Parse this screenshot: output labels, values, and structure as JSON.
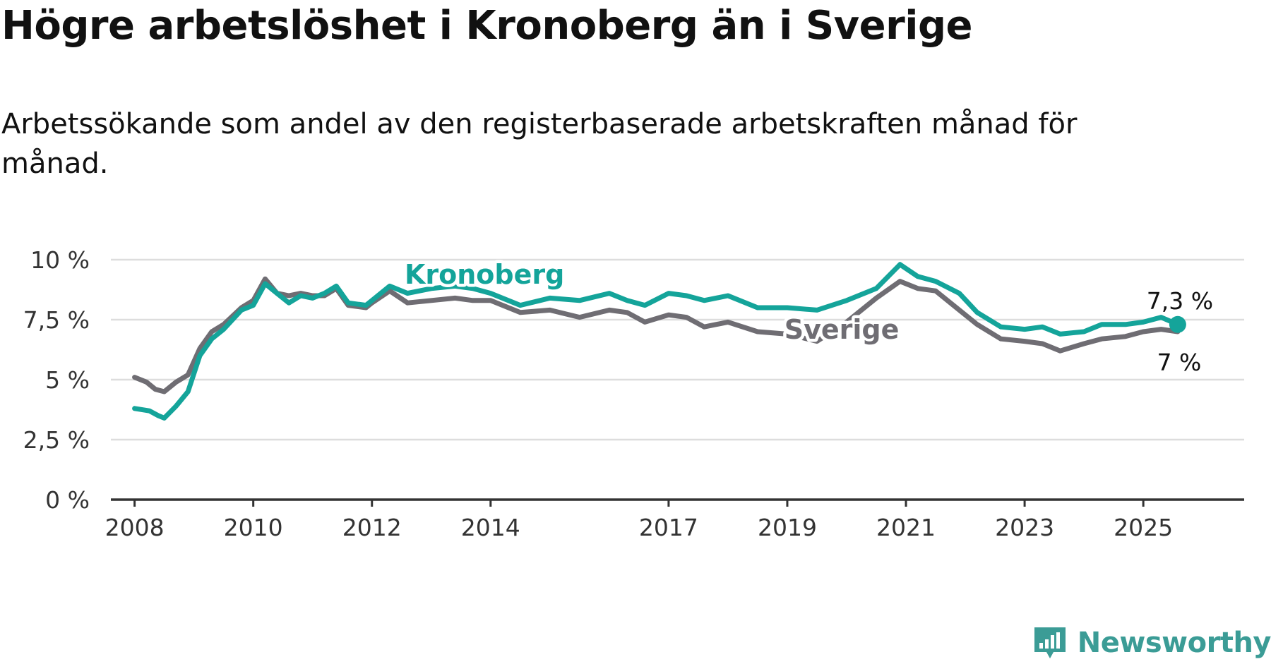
{
  "header": {
    "title": "Högre arbetslöshet i Kronoberg än i Sverige",
    "subtitle": "Arbetssökande som andel av den registerbaserade arbetskraften månad för månad."
  },
  "brand": {
    "name": "Newsworthy",
    "icon": "newsworthy-logo-icon",
    "color": "#3b9c96"
  },
  "chart_data": {
    "type": "line",
    "title": "Högre arbetslöshet i Kronoberg än i Sverige",
    "subtitle": "Arbetssökande som andel av den registerbaserade arbetskraften månad för månad.",
    "xlabel": "",
    "ylabel": "",
    "xlim": [
      2007.6,
      2026.7
    ],
    "ylim": [
      0,
      10
    ],
    "y_ticks": [
      0,
      2.5,
      5,
      7.5,
      10
    ],
    "y_tick_labels": [
      "0 %",
      "2,5 %",
      "5 %",
      "7,5 %",
      "10 %"
    ],
    "x_ticks": [
      2008,
      2010,
      2012,
      2014,
      2017,
      2019,
      2021,
      2023,
      2025
    ],
    "x_tick_labels": [
      "2008",
      "2010",
      "2012",
      "2014",
      "2017",
      "2019",
      "2021",
      "2023",
      "2025"
    ],
    "grid": true,
    "legend": "direct labels on lines",
    "series": [
      {
        "name": "Kronoberg",
        "color": "#14a49a",
        "end_label": "7,3 %",
        "x": [
          2008.0,
          2008.25,
          2008.4,
          2008.5,
          2008.7,
          2008.9,
          2009.1,
          2009.3,
          2009.5,
          2009.8,
          2010.0,
          2010.2,
          2010.4,
          2010.6,
          2010.8,
          2011.0,
          2011.2,
          2011.4,
          2011.6,
          2011.9,
          2012.0,
          2012.3,
          2012.6,
          2013.0,
          2013.4,
          2013.7,
          2014.0,
          2014.5,
          2015.0,
          2015.5,
          2016.0,
          2016.3,
          2016.6,
          2017.0,
          2017.3,
          2017.6,
          2018.0,
          2018.5,
          2019.0,
          2019.5,
          2020.0,
          2020.5,
          2020.9,
          2021.2,
          2021.5,
          2021.9,
          2022.2,
          2022.6,
          2023.0,
          2023.3,
          2023.6,
          2024.0,
          2024.3,
          2024.7,
          2025.0,
          2025.3,
          2025.58
        ],
        "values": [
          3.8,
          3.7,
          3.5,
          3.4,
          3.9,
          4.5,
          6.0,
          6.7,
          7.1,
          7.9,
          8.1,
          9.0,
          8.6,
          8.2,
          8.5,
          8.4,
          8.6,
          8.9,
          8.2,
          8.1,
          8.3,
          8.9,
          8.6,
          8.8,
          8.9,
          8.8,
          8.6,
          8.1,
          8.4,
          8.3,
          8.6,
          8.3,
          8.1,
          8.6,
          8.5,
          8.3,
          8.5,
          8.0,
          8.0,
          7.9,
          8.3,
          8.8,
          9.8,
          9.3,
          9.1,
          8.6,
          7.8,
          7.2,
          7.1,
          7.2,
          6.9,
          7.0,
          7.3,
          7.3,
          7.4,
          7.6,
          7.3
        ]
      },
      {
        "name": "Sverige",
        "color": "#6f6d73",
        "end_label": "7 %",
        "x": [
          2008.0,
          2008.2,
          2008.35,
          2008.5,
          2008.7,
          2008.9,
          2009.1,
          2009.3,
          2009.5,
          2009.8,
          2010.0,
          2010.2,
          2010.4,
          2010.6,
          2010.8,
          2011.0,
          2011.2,
          2011.4,
          2011.6,
          2011.9,
          2012.0,
          2012.3,
          2012.6,
          2013.0,
          2013.4,
          2013.7,
          2014.0,
          2014.5,
          2015.0,
          2015.5,
          2016.0,
          2016.3,
          2016.6,
          2017.0,
          2017.3,
          2017.6,
          2018.0,
          2018.5,
          2019.0,
          2019.5,
          2020.0,
          2020.5,
          2020.9,
          2021.2,
          2021.5,
          2021.9,
          2022.2,
          2022.6,
          2023.0,
          2023.3,
          2023.6,
          2024.0,
          2024.3,
          2024.7,
          2025.0,
          2025.3,
          2025.58
        ],
        "values": [
          5.1,
          4.9,
          4.6,
          4.5,
          4.9,
          5.2,
          6.3,
          7.0,
          7.3,
          8.0,
          8.3,
          9.2,
          8.6,
          8.5,
          8.6,
          8.5,
          8.5,
          8.8,
          8.1,
          8.0,
          8.2,
          8.7,
          8.2,
          8.3,
          8.4,
          8.3,
          8.3,
          7.8,
          7.9,
          7.6,
          7.9,
          7.8,
          7.4,
          7.7,
          7.6,
          7.2,
          7.4,
          7.0,
          6.9,
          6.6,
          7.4,
          8.4,
          9.1,
          8.8,
          8.7,
          7.9,
          7.3,
          6.7,
          6.6,
          6.5,
          6.2,
          6.5,
          6.7,
          6.8,
          7.0,
          7.1,
          7.0
        ]
      }
    ]
  }
}
